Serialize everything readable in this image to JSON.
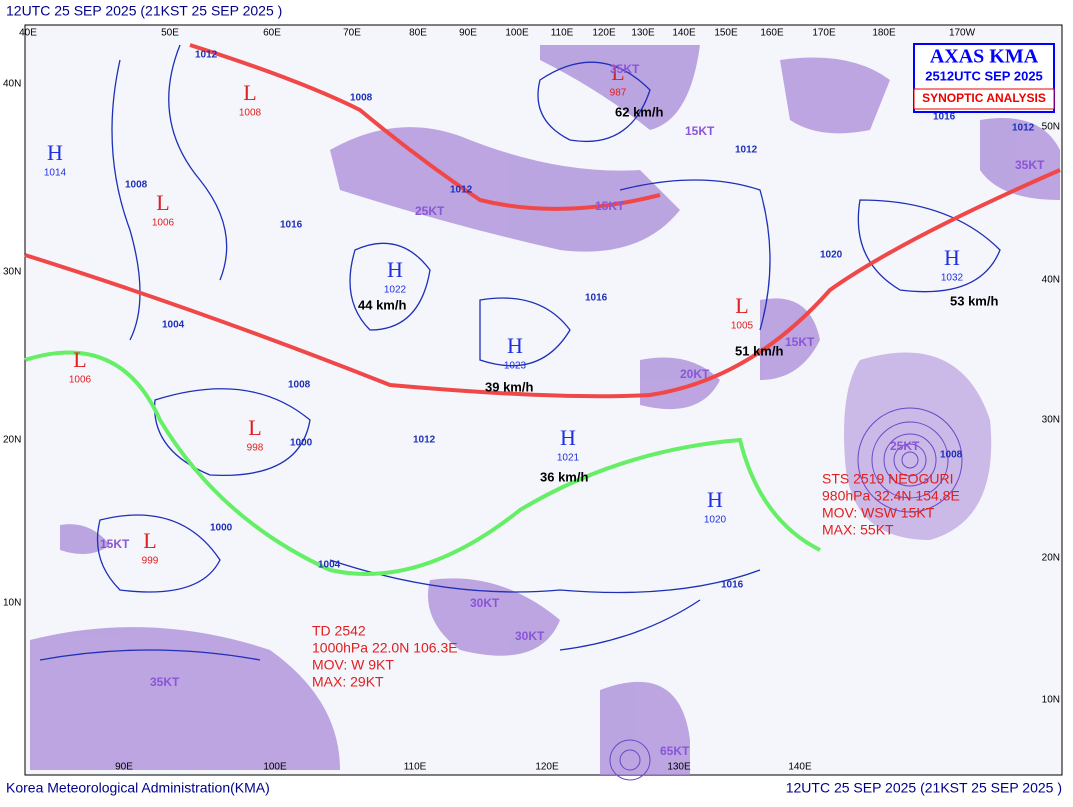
{
  "header": "12UTC 25 SEP 2025 (21KST 25 SEP 2025 )",
  "footer_left": "Korea Meteorological Administration(KMA)",
  "footer_right": "12UTC 25 SEP 2025 (21KST 25 SEP 2025 )",
  "title_box": {
    "line1": "AXAS KMA",
    "line2": "2512UTC SEP 2025",
    "line3": "SYNOPTIC ANALYSIS"
  },
  "top_longitudes": [
    "40E",
    "50E",
    "60E",
    "70E",
    "80E",
    "90E",
    "100E",
    "110E",
    "120E",
    "130E",
    "140E",
    "150E",
    "160E",
    "170E",
    "180E",
    "170W"
  ],
  "bottom_longitudes": [
    "90E",
    "100E",
    "110E",
    "120E",
    "130E",
    "140E"
  ],
  "left_latitudes": [
    "40N",
    "30N",
    "20N",
    "10N"
  ],
  "right_latitudes": [
    "50N",
    "40N",
    "30N",
    "20N",
    "10N"
  ],
  "pressure_centers": [
    {
      "letter": "L",
      "value": "1008"
    },
    {
      "letter": "H",
      "value": "1014"
    },
    {
      "letter": "L",
      "value": "1006"
    },
    {
      "letter": "H",
      "value": "1022"
    },
    {
      "letter": "H",
      "value": "1023"
    },
    {
      "letter": "L",
      "value": "1006"
    },
    {
      "letter": "L",
      "value": "998"
    },
    {
      "letter": "H",
      "value": "1021"
    },
    {
      "letter": "L",
      "value": "999"
    },
    {
      "letter": "L",
      "value": "987"
    },
    {
      "letter": "L",
      "value": "1005"
    },
    {
      "letter": "H",
      "value": "1032"
    },
    {
      "letter": "H",
      "value": "1020"
    }
  ],
  "movement_speeds": [
    "62 km/h",
    "44 km/h",
    "39 km/h",
    "36 km/h",
    "51 km/h",
    "53 km/h"
  ],
  "wind_labels": [
    "35KT",
    "15KT",
    "15KT",
    "25KT",
    "15KT",
    "35KT",
    "20KT",
    "15KT",
    "25KT",
    "30KT",
    "30KT",
    "35KT",
    "65KT"
  ],
  "isobar_labels": [
    "1012",
    "1008",
    "1012",
    "1016",
    "1016",
    "1012",
    "1008",
    "1000",
    "1004",
    "1000",
    "1008",
    "1012",
    "1016",
    "1020",
    "1016",
    "1012",
    "1008",
    "1004"
  ],
  "storms": [
    {
      "lines": [
        "TD 2542",
        "1000hPa 22.0N 106.3E",
        "MOV: W 9KT",
        "MAX: 29KT"
      ]
    },
    {
      "lines": [
        "STS 2519 NEOGURI",
        "980hPa 32.4N 154.8E",
        "MOV: WSW 15KT",
        "MAX: 55KT"
      ]
    }
  ]
}
